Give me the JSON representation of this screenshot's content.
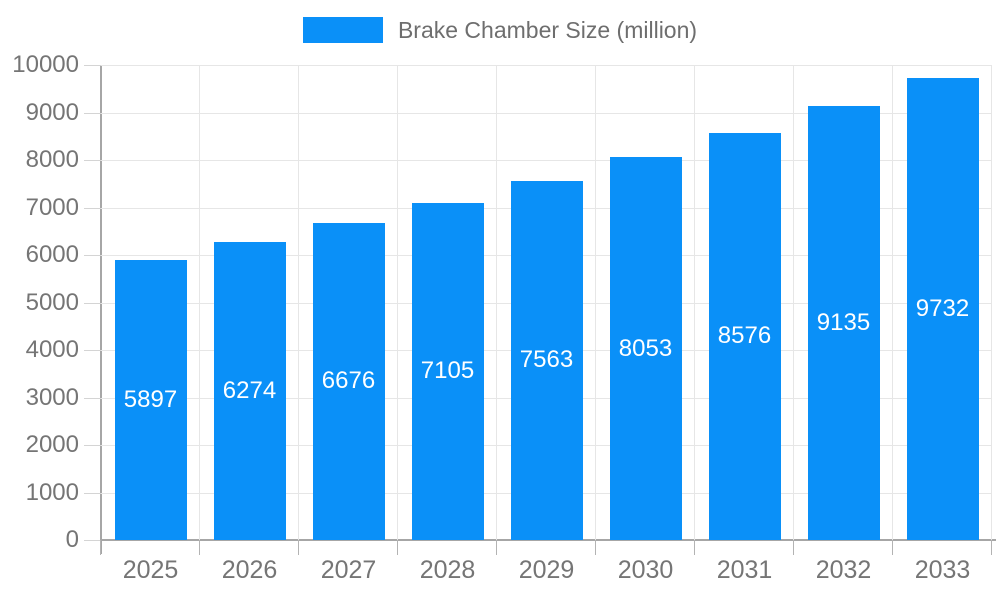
{
  "legend": {
    "label": "Brake Chamber Size (million)",
    "swatch_color": "#0a90f8"
  },
  "chart_data": {
    "type": "bar",
    "title": "Brake Chamber Size (million)",
    "categories": [
      "2025",
      "2026",
      "2027",
      "2028",
      "2029",
      "2030",
      "2031",
      "2032",
      "2033"
    ],
    "values": [
      5897,
      6274,
      6676,
      7105,
      7563,
      8053,
      8576,
      9135,
      9732
    ],
    "series": [
      {
        "name": "Brake Chamber Size (million)",
        "values": [
          5897,
          6274,
          6676,
          7105,
          7563,
          8053,
          8576,
          9135,
          9732
        ]
      }
    ],
    "xlabel": "",
    "ylabel": "",
    "ylim": [
      0,
      10000
    ],
    "ytick_step": 1000,
    "yticks": [
      0,
      1000,
      2000,
      3000,
      4000,
      5000,
      6000,
      7000,
      8000,
      9000,
      10000
    ],
    "grid": "both",
    "legend_position": "top",
    "bar_color": "#0a90f8",
    "value_label_color": "#ffffff",
    "axis_text_color": "#757575",
    "gridline_color": "#e6e6e6",
    "axis_line_color": "#a6a6a6"
  }
}
